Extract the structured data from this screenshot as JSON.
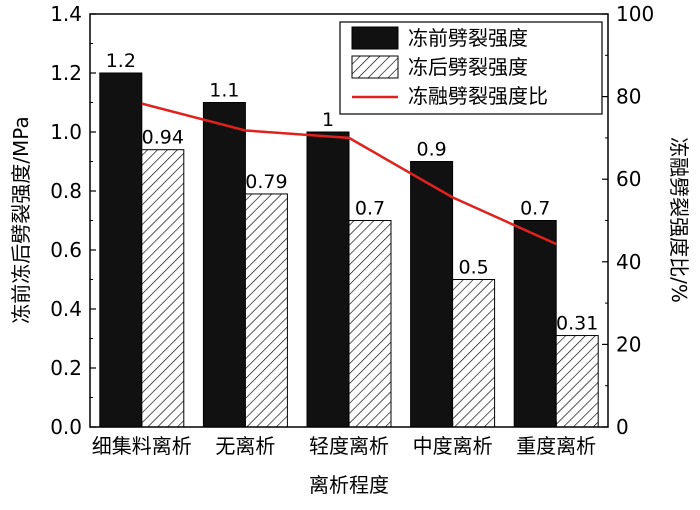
{
  "chart_data": {
    "type": "bar",
    "xlabel": "离析程度",
    "ylabel": "冻前冻后劈裂强度/MPa",
    "y2label": "冻融劈裂强度比/%",
    "categories": [
      "细集料离析",
      "无离析",
      "轻度离析",
      "中度离析",
      "重度离析"
    ],
    "ylim": [
      0,
      1.4
    ],
    "y2lim": [
      0,
      100
    ],
    "yticks": [
      "0.0",
      "0.2",
      "0.4",
      "0.6",
      "0.8",
      "1.0",
      "1.2",
      "1.4"
    ],
    "y2ticks": [
      "0",
      "20",
      "40",
      "60",
      "80",
      "100"
    ],
    "series": [
      {
        "name": "冻前劈裂强度",
        "type": "bar",
        "fill": "solid",
        "color": "#111111",
        "values": [
          1.2,
          1.1,
          1.0,
          0.9,
          0.7
        ],
        "labels": [
          "1.2",
          "1.1",
          "1",
          "0.9",
          "0.7"
        ]
      },
      {
        "name": "冻后劈裂强度",
        "type": "bar",
        "fill": "hatched",
        "color": "#ffffff",
        "values": [
          0.94,
          0.79,
          0.7,
          0.5,
          0.31
        ],
        "labels": [
          "0.94",
          "0.79",
          "0.7",
          "0.5",
          "0.31"
        ]
      },
      {
        "name": "冻融劈裂强度比",
        "type": "line",
        "axis": "right",
        "color": "#e0221f",
        "values": [
          78.3,
          71.8,
          70.0,
          55.6,
          44.3
        ]
      }
    ],
    "legend_position": "top-right",
    "grid": false
  }
}
